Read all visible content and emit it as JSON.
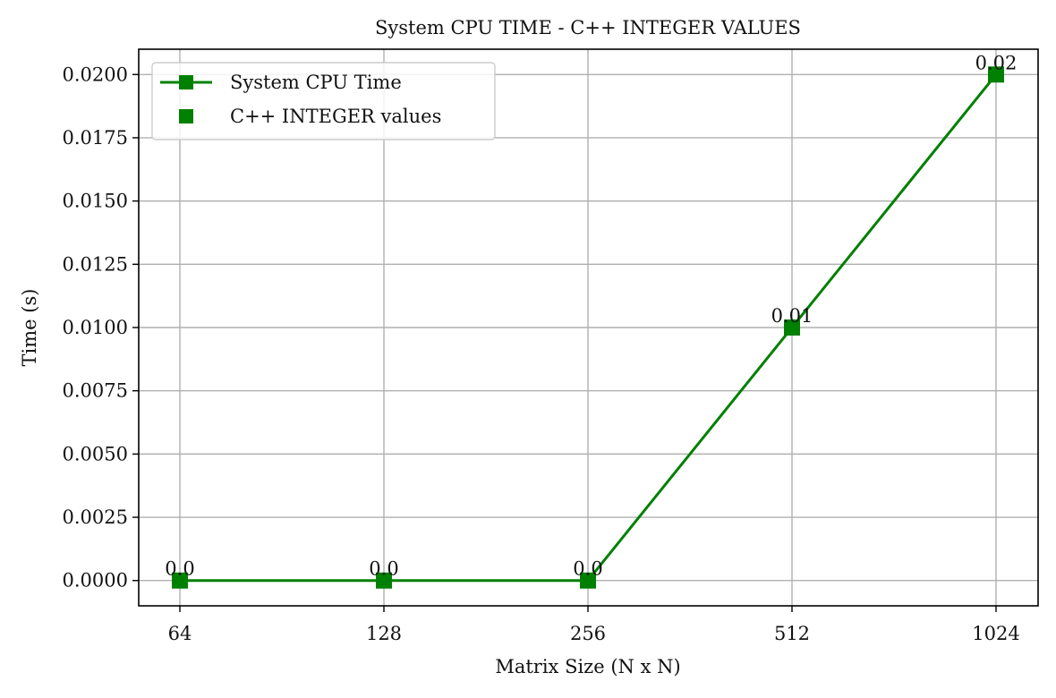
{
  "chart_data": {
    "type": "line",
    "title": "System CPU TIME - C++ INTEGER VALUES",
    "xlabel": "Matrix Size (N x N)",
    "ylabel": "Time (s)",
    "categories": [
      "64",
      "128",
      "256",
      "512",
      "1024"
    ],
    "series": [
      {
        "name": "System CPU Time",
        "values": [
          0.0,
          0.0,
          0.0,
          0.01,
          0.02
        ],
        "color": "#008000",
        "marker": "square"
      }
    ],
    "extra_legend_entries": [
      {
        "name": "C++ INTEGER values",
        "marker": "square",
        "color": "#008000",
        "line": false
      }
    ],
    "point_labels": [
      "0.0",
      "0.0",
      "0.0",
      "0.01",
      "0.02"
    ],
    "ylim": [
      -0.001,
      0.021
    ],
    "yticks": [
      0.0,
      0.0025,
      0.005,
      0.0075,
      0.01,
      0.0125,
      0.015,
      0.0175,
      0.02
    ],
    "ytick_labels": [
      "0.0000",
      "0.0025",
      "0.0050",
      "0.0075",
      "0.0100",
      "0.0125",
      "0.0150",
      "0.0175",
      "0.0200"
    ],
    "grid": true,
    "legend_position": "top-left"
  }
}
